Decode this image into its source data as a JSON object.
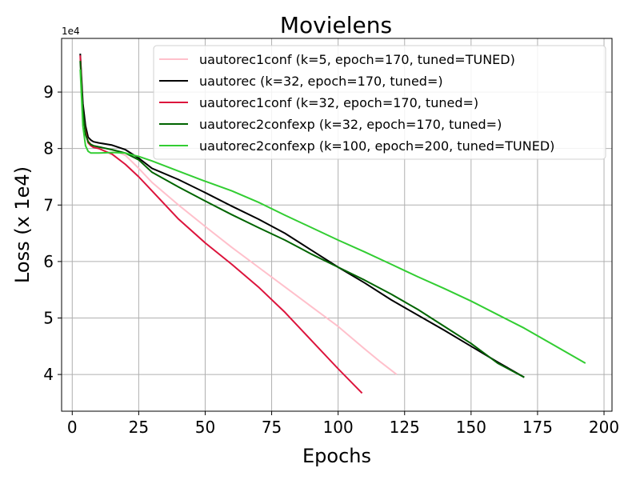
{
  "chart_data": {
    "type": "line",
    "title": "Movielens",
    "xlabel": "Epochs",
    "ylabel": "Loss (x 1e4)",
    "y_offset_label": "1e4",
    "xlim": [
      -4,
      203
    ],
    "ylim": [
      3.35,
      9.95
    ],
    "xticks": [
      0,
      25,
      50,
      75,
      100,
      125,
      150,
      175,
      200
    ],
    "yticks": [
      4,
      5,
      6,
      7,
      8,
      9
    ],
    "grid": true,
    "legend_position": "top-right",
    "series": [
      {
        "name": "uautorec1conf (k=5, epoch=170, tuned=TUNED)",
        "color": "#ffc0cb",
        "x": [
          3,
          4,
          5,
          6,
          7,
          8,
          10,
          15,
          20,
          25,
          30,
          40,
          50,
          60,
          70,
          80,
          90,
          100,
          110,
          116,
          122
        ],
        "y": [
          9.62,
          8.7,
          8.35,
          8.15,
          8.08,
          8.05,
          8.03,
          7.98,
          7.88,
          7.65,
          7.4,
          7.0,
          6.62,
          6.25,
          5.9,
          5.55,
          5.2,
          4.85,
          4.45,
          4.22,
          4.0
        ]
      },
      {
        "name": "uautorec (k=32, epoch=170, tuned=)",
        "color": "#000000",
        "x": [
          3,
          4,
          5,
          6,
          7,
          8,
          10,
          15,
          20,
          25,
          30,
          40,
          50,
          60,
          70,
          80,
          90,
          100,
          110,
          120,
          130,
          140,
          150,
          160,
          170
        ],
        "y": [
          9.68,
          8.8,
          8.4,
          8.2,
          8.15,
          8.12,
          8.1,
          8.06,
          7.98,
          7.83,
          7.65,
          7.45,
          7.22,
          6.98,
          6.75,
          6.5,
          6.2,
          5.9,
          5.62,
          5.32,
          5.05,
          4.78,
          4.5,
          4.22,
          3.95
        ]
      },
      {
        "name": "uautorec1conf (k=32, epoch=170, tuned=)",
        "color": "#dc143c",
        "x": [
          3,
          4,
          5,
          6,
          7,
          8,
          10,
          15,
          20,
          25,
          30,
          40,
          50,
          60,
          70,
          80,
          90,
          100,
          109
        ],
        "y": [
          9.65,
          8.6,
          8.3,
          8.1,
          8.05,
          8.02,
          8.0,
          7.9,
          7.72,
          7.5,
          7.25,
          6.75,
          6.33,
          5.95,
          5.55,
          5.1,
          4.6,
          4.1,
          3.67
        ]
      },
      {
        "name": "uautorec2confexp (k=32, epoch=170, tuned=)",
        "color": "#006400",
        "x": [
          3,
          4,
          5,
          6,
          7,
          8,
          10,
          15,
          20,
          25,
          30,
          40,
          50,
          60,
          70,
          80,
          90,
          100,
          110,
          120,
          130,
          140,
          150,
          160,
          170
        ],
        "y": [
          9.55,
          8.65,
          8.25,
          8.12,
          8.07,
          8.05,
          8.03,
          7.98,
          7.92,
          7.8,
          7.58,
          7.32,
          7.07,
          6.83,
          6.6,
          6.38,
          6.13,
          5.9,
          5.67,
          5.42,
          5.15,
          4.85,
          4.55,
          4.2,
          3.95
        ]
      },
      {
        "name": "uautorec2confexp (k=100, epoch=200, tuned=TUNED)",
        "color": "#32cd32",
        "x": [
          3,
          4,
          5,
          6,
          7,
          8,
          10,
          15,
          20,
          25,
          30,
          40,
          50,
          60,
          70,
          80,
          90,
          100,
          110,
          120,
          130,
          140,
          150,
          160,
          170,
          180,
          193
        ],
        "y": [
          9.4,
          8.4,
          8.05,
          7.95,
          7.92,
          7.92,
          7.92,
          7.93,
          7.92,
          7.86,
          7.78,
          7.6,
          7.42,
          7.25,
          7.05,
          6.82,
          6.6,
          6.38,
          6.17,
          5.95,
          5.73,
          5.52,
          5.3,
          5.06,
          4.82,
          4.55,
          4.2
        ]
      }
    ]
  }
}
